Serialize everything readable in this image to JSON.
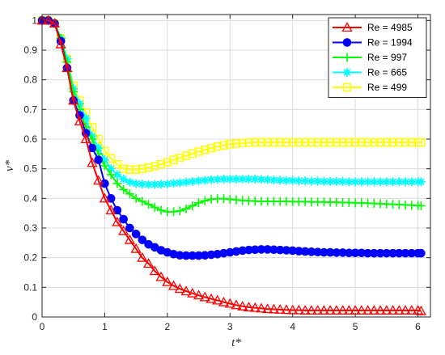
{
  "chart_data": {
    "type": "line",
    "title": "",
    "xlabel": "t*",
    "ylabel": "v*",
    "xlim": [
      0,
      6.2
    ],
    "ylim": [
      0,
      1.02
    ],
    "xticks": [
      "0",
      "1",
      "2",
      "3",
      "4",
      "5",
      "6"
    ],
    "yticks": [
      "0",
      "0.1",
      "0.2",
      "0.3",
      "0.4",
      "0.5",
      "0.6",
      "0.7",
      "0.8",
      "0.9",
      "1"
    ],
    "grid": true,
    "legend_position": "top-right",
    "x": [
      0.0,
      0.1,
      0.2,
      0.3,
      0.4,
      0.5,
      0.6,
      0.7,
      0.8,
      0.9,
      1.0,
      1.1,
      1.2,
      1.3,
      1.4,
      1.5,
      1.6,
      1.7,
      1.8,
      1.9,
      2.0,
      2.1,
      2.2,
      2.3,
      2.4,
      2.5,
      2.6,
      2.7,
      2.8,
      2.9,
      3.0,
      3.1,
      3.2,
      3.3,
      3.4,
      3.5,
      3.6,
      3.7,
      3.8,
      3.9,
      4.0,
      4.1,
      4.2,
      4.3,
      4.4,
      4.5,
      4.6,
      4.7,
      4.8,
      4.9,
      5.0,
      5.1,
      5.2,
      5.3,
      5.4,
      5.5,
      5.6,
      5.7,
      5.8,
      5.9,
      6.0,
      6.05
    ],
    "series": [
      {
        "name": "Re = 4985",
        "color": "#ff0000",
        "marker": "triangle",
        "values": [
          1.0,
          1.0,
          0.99,
          0.92,
          0.84,
          0.73,
          0.66,
          0.6,
          0.52,
          0.46,
          0.4,
          0.36,
          0.32,
          0.29,
          0.26,
          0.23,
          0.2,
          0.18,
          0.155,
          0.135,
          0.118,
          0.105,
          0.095,
          0.087,
          0.08,
          0.073,
          0.067,
          0.061,
          0.056,
          0.05,
          0.045,
          0.04,
          0.036,
          0.033,
          0.031,
          0.029,
          0.027,
          0.026,
          0.025,
          0.024,
          0.023,
          0.023,
          0.022,
          0.022,
          0.022,
          0.022,
          0.022,
          0.022,
          0.022,
          0.022,
          0.022,
          0.022,
          0.022,
          0.022,
          0.022,
          0.022,
          0.022,
          0.022,
          0.022,
          0.022,
          0.022,
          0.02
        ]
      },
      {
        "name": "Re = 1994",
        "color": "#0000ff",
        "marker": "circle",
        "values": [
          1.0,
          1.0,
          0.99,
          0.93,
          0.84,
          0.73,
          0.68,
          0.62,
          0.57,
          0.53,
          0.45,
          0.4,
          0.36,
          0.33,
          0.3,
          0.28,
          0.26,
          0.245,
          0.235,
          0.225,
          0.218,
          0.212,
          0.208,
          0.207,
          0.207,
          0.207,
          0.208,
          0.21,
          0.212,
          0.215,
          0.218,
          0.221,
          0.224,
          0.226,
          0.227,
          0.228,
          0.228,
          0.227,
          0.226,
          0.225,
          0.224,
          0.222,
          0.221,
          0.22,
          0.219,
          0.218,
          0.218,
          0.217,
          0.217,
          0.216,
          0.216,
          0.216,
          0.215,
          0.215,
          0.215,
          0.215,
          0.215,
          0.215,
          0.215,
          0.215,
          0.215,
          0.215
        ]
      },
      {
        "name": "Re = 997",
        "color": "#00ff00",
        "marker": "plus",
        "values": [
          1.0,
          1.0,
          0.99,
          0.94,
          0.86,
          0.76,
          0.7,
          0.64,
          0.6,
          0.55,
          0.51,
          0.48,
          0.45,
          0.43,
          0.415,
          0.4,
          0.39,
          0.38,
          0.37,
          0.36,
          0.355,
          0.355,
          0.358,
          0.365,
          0.375,
          0.385,
          0.392,
          0.397,
          0.399,
          0.399,
          0.397,
          0.395,
          0.393,
          0.392,
          0.391,
          0.39,
          0.39,
          0.39,
          0.39,
          0.39,
          0.389,
          0.389,
          0.389,
          0.388,
          0.388,
          0.388,
          0.387,
          0.387,
          0.386,
          0.386,
          0.385,
          0.385,
          0.384,
          0.383,
          0.382,
          0.381,
          0.38,
          0.379,
          0.378,
          0.377,
          0.376,
          0.375
        ]
      },
      {
        "name": "Re = 665",
        "color": "#00ffff",
        "marker": "asterisk",
        "values": [
          1.0,
          1.0,
          0.99,
          0.94,
          0.87,
          0.77,
          0.72,
          0.67,
          0.61,
          0.57,
          0.53,
          0.5,
          0.48,
          0.465,
          0.455,
          0.45,
          0.448,
          0.447,
          0.447,
          0.448,
          0.449,
          0.451,
          0.453,
          0.455,
          0.457,
          0.459,
          0.461,
          0.463,
          0.464,
          0.465,
          0.465,
          0.465,
          0.465,
          0.465,
          0.465,
          0.464,
          0.463,
          0.462,
          0.461,
          0.46,
          0.46,
          0.459,
          0.459,
          0.458,
          0.458,
          0.457,
          0.457,
          0.457,
          0.457,
          0.456,
          0.456,
          0.456,
          0.456,
          0.456,
          0.456,
          0.456,
          0.456,
          0.456,
          0.456,
          0.456,
          0.456,
          0.456
        ]
      },
      {
        "name": "Re = 499",
        "color": "#ffff00",
        "marker": "square",
        "values": [
          1.0,
          1.0,
          0.99,
          0.94,
          0.87,
          0.78,
          0.73,
          0.69,
          0.64,
          0.6,
          0.56,
          0.535,
          0.515,
          0.5,
          0.497,
          0.497,
          0.5,
          0.504,
          0.509,
          0.515,
          0.522,
          0.53,
          0.537,
          0.544,
          0.551,
          0.558,
          0.564,
          0.57,
          0.575,
          0.579,
          0.583,
          0.585,
          0.587,
          0.588,
          0.589,
          0.589,
          0.589,
          0.589,
          0.589,
          0.589,
          0.589,
          0.589,
          0.589,
          0.589,
          0.589,
          0.589,
          0.589,
          0.589,
          0.589,
          0.589,
          0.589,
          0.589,
          0.589,
          0.589,
          0.589,
          0.589,
          0.589,
          0.589,
          0.589,
          0.589,
          0.589,
          0.589
        ]
      }
    ]
  }
}
